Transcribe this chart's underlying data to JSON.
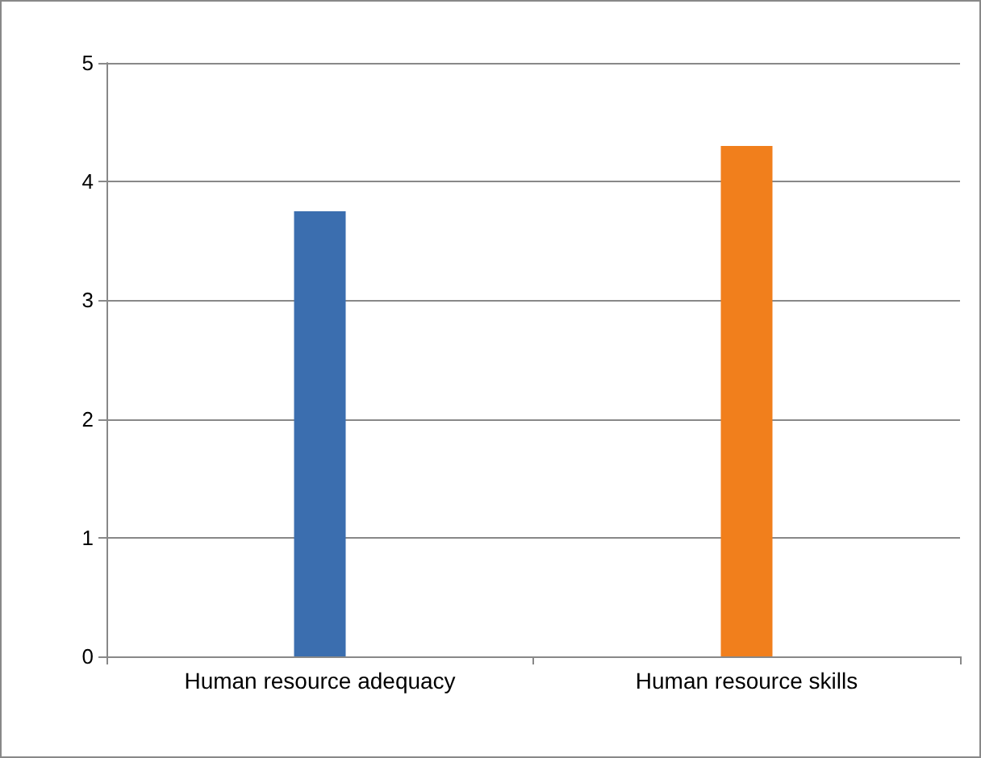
{
  "chart_data": {
    "type": "bar",
    "categories": [
      "Human resource adequacy",
      "Human resource skills"
    ],
    "values": [
      3.75,
      4.3
    ],
    "colors": [
      "#3b6eaf",
      "#f17f1c"
    ],
    "ylim": [
      0,
      5
    ],
    "yticks": [
      0,
      1,
      2,
      3,
      4,
      5
    ],
    "grid": "y"
  }
}
